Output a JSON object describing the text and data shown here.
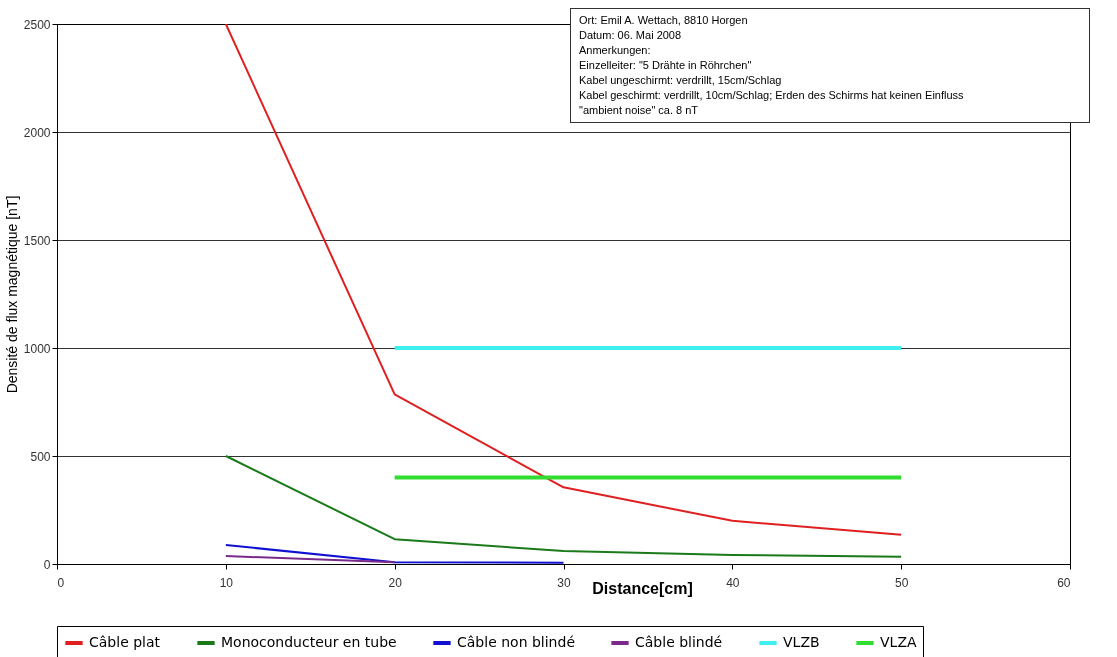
{
  "chart_data": {
    "type": "line",
    "xlabel": "Distance[cm]",
    "ylabel": "Densité de flux magnétique [nT]",
    "xlim": [
      0,
      60
    ],
    "xticks": [
      0,
      10,
      20,
      30,
      40,
      50,
      60
    ],
    "ylim": [
      0,
      2500
    ],
    "yticks": [
      0,
      500,
      1000,
      1500,
      2000,
      2500
    ],
    "grid": "y",
    "legend": "bottom",
    "annotations": [
      "Ort: Emil A. Wettach, 8810 Horgen",
      "Datum: 06. Mai 2008",
      "Anmerkungen:",
      "Einzelleiter: \"5 Drähte in Röhrchen\"",
      "Kabel ungeschirmt: verdrillt, 15cm/Schlag",
      "Kabel geschirmt: verdrillt, 10cm/Schlag; Erden des Schirms hat keinen Einfluss",
      "\"ambient noise\" ca. 8 nT"
    ],
    "series": [
      {
        "name": "Câble plat",
        "color": "#e02020",
        "x": [
          10,
          20,
          30,
          40,
          50
        ],
        "values": [
          2500,
          785,
          355,
          200,
          135
        ]
      },
      {
        "name": "Monoconducteur en tube",
        "color": "#1a7a1a",
        "x": [
          10,
          20,
          30,
          40,
          50
        ],
        "values": [
          500,
          115,
          60,
          42,
          33
        ]
      },
      {
        "name": "Câble non blindé",
        "color": "#1010d0",
        "x": [
          10,
          20,
          30
        ],
        "values": [
          88,
          8,
          6
        ]
      },
      {
        "name": "Câble blindé",
        "color": "#7a2a8a",
        "x": [
          10,
          20
        ],
        "values": [
          37,
          8
        ]
      },
      {
        "name": "VLZB",
        "color": "#40f0f0",
        "x": [
          20,
          50
        ],
        "values": [
          1000,
          1000
        ]
      },
      {
        "name": "VLZA",
        "color": "#30dd30",
        "x": [
          20,
          50
        ],
        "values": [
          400,
          400
        ]
      }
    ]
  }
}
